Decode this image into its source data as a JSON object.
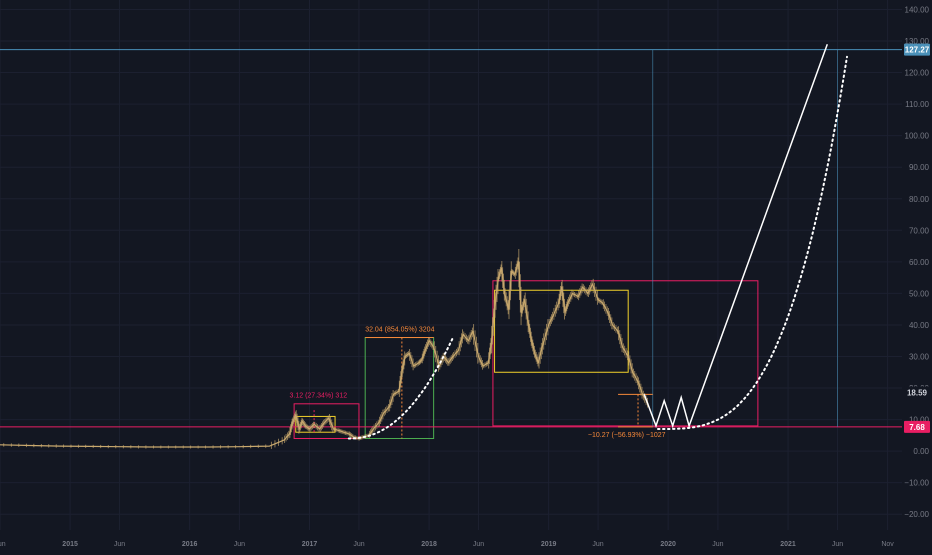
{
  "chart_data": {
    "type": "line",
    "title": "",
    "xlabel": "",
    "ylabel": "",
    "ylim": [
      -25,
      143
    ],
    "xlim": [
      "2014-06-01",
      "2021-12-15"
    ],
    "grid": true,
    "log_scale": false,
    "colors": {
      "background": "#131722",
      "price": "#c9a96e",
      "axis_text": "#787b86",
      "grid": "#1c2030",
      "crimson": "#e91e63",
      "green": "#4caf50",
      "yellow": "#f2d22a",
      "orange": "#f5883a",
      "target_line": "#4a90b8",
      "projection": "#ffffff"
    },
    "y_ticks": [
      140,
      130,
      120,
      110,
      100,
      90,
      80,
      70,
      60,
      50,
      40,
      30,
      20,
      10,
      0,
      -10,
      -20
    ],
    "y_tick_labels": [
      "140.00",
      "130.00",
      "120.00",
      "110.00",
      "100.00",
      "90.00",
      "80.00",
      "70.00",
      "60.00",
      "50.00",
      "40.00",
      "30.00",
      "20.00",
      "10.00",
      "0.00",
      "−10.00",
      "−20.00"
    ],
    "x_ticks": [
      {
        "label": "Jun",
        "date": "2014-06-01"
      },
      {
        "label": "2015",
        "date": "2015-01-01"
      },
      {
        "label": "Jun",
        "date": "2015-06-01"
      },
      {
        "label": "2016",
        "date": "2016-01-01"
      },
      {
        "label": "Jun",
        "date": "2016-06-01"
      },
      {
        "label": "2017",
        "date": "2017-01-01"
      },
      {
        "label": "Jun",
        "date": "2017-06-01"
      },
      {
        "label": "2018",
        "date": "2018-01-01"
      },
      {
        "label": "Jun",
        "date": "2018-06-01"
      },
      {
        "label": "2019",
        "date": "2019-01-01"
      },
      {
        "label": "Jun",
        "date": "2019-06-01"
      },
      {
        "label": "2020",
        "date": "2020-01-01"
      },
      {
        "label": "Jun",
        "date": "2020-06-01"
      },
      {
        "label": "2021",
        "date": "2021-01-01"
      },
      {
        "label": "Jun",
        "date": "2021-06-01"
      },
      {
        "label": "Nov",
        "date": "2021-11-01"
      }
    ],
    "price_labels": [
      {
        "value": 127.27,
        "text": "127.27",
        "color": "#4a90b8"
      },
      {
        "value": 18.59,
        "text": "18.59",
        "color": "#131722"
      },
      {
        "value": 7.68,
        "text": "7.68",
        "color": "#e91e63"
      }
    ],
    "horizontal_lines": [
      {
        "y": 127.27,
        "color": "#4a90b8"
      },
      {
        "y": 7.68,
        "color": "#e91e63"
      }
    ],
    "series": [
      {
        "x": [
          "2014-06-01",
          "2014-09-01",
          "2014-12-01",
          "2015-03-01",
          "2015-06-01",
          "2015-09-01",
          "2015-12-01",
          "2016-03-01",
          "2016-06-01",
          "2016-09-01",
          "2016-10-15",
          "2016-11-01",
          "2016-11-10",
          "2016-11-20",
          "2016-12-01",
          "2016-12-10",
          "2016-12-20",
          "2017-01-01",
          "2017-01-15",
          "2017-02-01",
          "2017-02-15",
          "2017-03-01",
          "2017-03-15",
          "2017-04-01",
          "2017-04-15",
          "2017-05-01",
          "2017-05-15",
          "2017-06-01",
          "2017-06-15",
          "2017-07-01",
          "2017-07-15",
          "2017-08-01",
          "2017-08-15",
          "2017-09-01",
          "2017-09-15",
          "2017-10-01",
          "2017-10-10",
          "2017-10-20",
          "2017-11-01",
          "2017-11-15",
          "2017-12-01",
          "2017-12-10",
          "2017-12-20",
          "2018-01-01",
          "2018-01-15",
          "2018-02-01",
          "2018-02-15",
          "2018-03-01",
          "2018-03-15",
          "2018-04-01",
          "2018-04-15",
          "2018-05-01",
          "2018-05-15",
          "2018-06-01",
          "2018-06-15",
          "2018-07-01",
          "2018-07-10",
          "2018-07-20",
          "2018-08-01",
          "2018-08-10",
          "2018-08-20",
          "2018-09-01",
          "2018-09-10",
          "2018-09-20",
          "2018-10-01",
          "2018-10-10",
          "2018-10-20",
          "2018-11-01",
          "2018-11-10",
          "2018-11-20",
          "2018-12-01",
          "2018-12-15",
          "2019-01-01",
          "2019-01-15",
          "2019-02-01",
          "2019-02-10",
          "2019-02-20",
          "2019-03-01",
          "2019-03-15",
          "2019-04-01",
          "2019-04-15",
          "2019-05-01",
          "2019-05-15",
          "2019-06-01",
          "2019-06-15",
          "2019-07-01",
          "2019-07-15",
          "2019-08-01",
          "2019-08-15",
          "2019-09-01",
          "2019-09-15",
          "2019-10-01",
          "2019-10-15",
          "2019-11-01"
        ],
        "y": [
          2.0,
          1.8,
          1.6,
          1.5,
          1.4,
          1.3,
          1.3,
          1.3,
          1.4,
          1.6,
          3.5,
          5.5,
          9.0,
          11.5,
          7.0,
          9.5,
          8.0,
          7.0,
          8.5,
          7.0,
          9.0,
          10.5,
          7.0,
          6.5,
          6.0,
          5.5,
          4.5,
          4.0,
          4.5,
          5.0,
          7.0,
          9.0,
          12.0,
          14.0,
          18.0,
          19.0,
          25.0,
          30.0,
          31.0,
          27.0,
          28.0,
          29.0,
          32.0,
          35.0,
          33.0,
          27.0,
          30.0,
          28.0,
          30.0,
          32.0,
          37.0,
          35.0,
          38.0,
          30.0,
          27.0,
          28.0,
          34.0,
          45.0,
          55.0,
          58.0,
          50.0,
          45.0,
          57.0,
          56.0,
          60.0,
          44.0,
          48.0,
          40.0,
          35.0,
          31.0,
          28.0,
          34.0,
          40.0,
          43.0,
          47.0,
          52.0,
          44.0,
          47.0,
          50.0,
          49.0,
          52.0,
          50.0,
          53.0,
          48.0,
          47.0,
          44.0,
          40.0,
          38.0,
          33.0,
          30.0,
          25.0,
          22.0,
          18.0,
          15.0
        ]
      }
    ],
    "annotations": {
      "drawdown_note": "3.12 (27.34%) 312",
      "rally_note": "32.04 (854.05%) 3204",
      "drop_note": "−10.27 (−56.93%) −1027"
    },
    "rectangles": [
      {
        "x0": "2016-11-15",
        "x1": "2017-06-01",
        "y0": 4,
        "y1": 15,
        "color": "#e91e63"
      },
      {
        "x0": "2016-11-20",
        "x1": "2017-03-20",
        "y0": 6,
        "y1": 11,
        "color": "#f2d22a"
      },
      {
        "x0": "2017-06-20",
        "x1": "2018-01-15",
        "y0": 4,
        "y1": 36,
        "color": "#4caf50"
      },
      {
        "x0": "2018-07-15",
        "x1": "2020-10-01",
        "y0": 8,
        "y1": 54,
        "color": "#e91e63"
      },
      {
        "x0": "2018-07-20",
        "x1": "2019-09-01",
        "y0": 25,
        "y1": 51,
        "color": "#f2d22a"
      }
    ],
    "projections": {
      "straight": [
        [
          "2019-10-20",
          18
        ],
        [
          "2019-11-25",
          8
        ],
        [
          "2019-12-20",
          16
        ],
        [
          "2020-01-15",
          8
        ],
        [
          "2020-02-10",
          17
        ],
        [
          "2020-03-05",
          8
        ],
        [
          "2021-05-01",
          129
        ]
      ],
      "dotted_curve": {
        "from": "2017-05-01",
        "to": "2018-03-15",
        "note": "parabolic"
      },
      "dotted_parabolic": {
        "x0": "2019-12-01",
        "y0": 7,
        "x1": "2021-06-30",
        "y1": 125
      },
      "target_vline": "2019-11-15",
      "right_vline": "2021-06-01"
    }
  }
}
